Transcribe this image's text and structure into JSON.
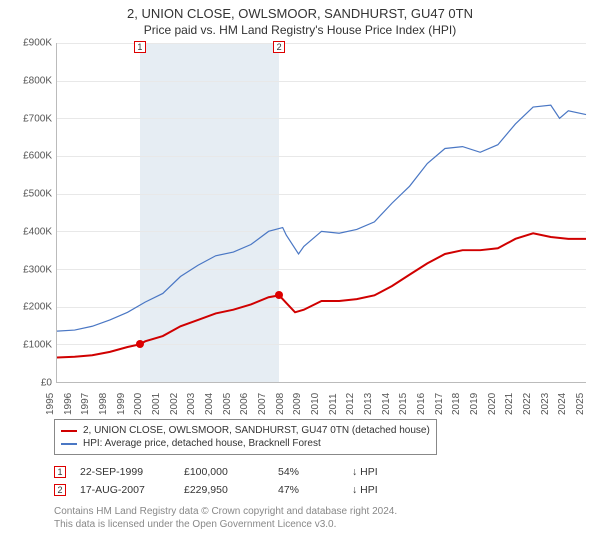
{
  "titles": {
    "main": "2, UNION CLOSE, OWLSMOOR, SANDHURST, GU47 0TN",
    "sub": "Price paid vs. HM Land Registry's House Price Index (HPI)"
  },
  "chart": {
    "type": "line",
    "background_color": "#ffffff",
    "grid_color": "#e8e8e8",
    "shade_color": "#e6edf3",
    "shade_range": [
      1999.7,
      2007.6
    ],
    "x": {
      "min": 1995,
      "max": 2025,
      "ticks": [
        1995,
        1996,
        1997,
        1998,
        1999,
        2000,
        2001,
        2002,
        2003,
        2004,
        2005,
        2006,
        2007,
        2008,
        2009,
        2010,
        2011,
        2012,
        2013,
        2014,
        2015,
        2016,
        2017,
        2018,
        2019,
        2020,
        2021,
        2022,
        2023,
        2024,
        2025
      ]
    },
    "y": {
      "min": 0,
      "max": 900000,
      "ticks": [
        0,
        100000,
        200000,
        300000,
        400000,
        500000,
        600000,
        700000,
        800000,
        900000
      ],
      "labels": [
        "£0",
        "£100K",
        "£200K",
        "£300K",
        "£400K",
        "£500K",
        "£600K",
        "£700K",
        "£800K",
        "£900K"
      ]
    },
    "series": [
      {
        "name": "prop",
        "color": "#d00000",
        "width": 2,
        "points": [
          [
            1995,
            65000
          ],
          [
            1996,
            67000
          ],
          [
            1997,
            71000
          ],
          [
            1998,
            80000
          ],
          [
            1999,
            93000
          ],
          [
            1999.7,
            100000
          ],
          [
            2000,
            108000
          ],
          [
            2001,
            122000
          ],
          [
            2002,
            148000
          ],
          [
            2003,
            165000
          ],
          [
            2004,
            182000
          ],
          [
            2005,
            192000
          ],
          [
            2006,
            206000
          ],
          [
            2007,
            225000
          ],
          [
            2007.6,
            229950
          ],
          [
            2008,
            210000
          ],
          [
            2008.5,
            185000
          ],
          [
            2009,
            192000
          ],
          [
            2010,
            215000
          ],
          [
            2011,
            215000
          ],
          [
            2012,
            220000
          ],
          [
            2013,
            230000
          ],
          [
            2014,
            255000
          ],
          [
            2015,
            285000
          ],
          [
            2016,
            315000
          ],
          [
            2017,
            340000
          ],
          [
            2018,
            350000
          ],
          [
            2019,
            350000
          ],
          [
            2020,
            355000
          ],
          [
            2021,
            380000
          ],
          [
            2022,
            395000
          ],
          [
            2023,
            385000
          ],
          [
            2024,
            380000
          ],
          [
            2025,
            380000
          ]
        ]
      },
      {
        "name": "hpi",
        "color": "#4a77c4",
        "width": 1.2,
        "points": [
          [
            1995,
            135000
          ],
          [
            1996,
            138000
          ],
          [
            1997,
            148000
          ],
          [
            1998,
            165000
          ],
          [
            1999,
            185000
          ],
          [
            2000,
            212000
          ],
          [
            2001,
            235000
          ],
          [
            2002,
            280000
          ],
          [
            2003,
            310000
          ],
          [
            2004,
            335000
          ],
          [
            2005,
            345000
          ],
          [
            2006,
            365000
          ],
          [
            2007,
            400000
          ],
          [
            2007.8,
            410000
          ],
          [
            2008,
            390000
          ],
          [
            2008.7,
            340000
          ],
          [
            2009,
            360000
          ],
          [
            2010,
            400000
          ],
          [
            2011,
            395000
          ],
          [
            2012,
            405000
          ],
          [
            2013,
            425000
          ],
          [
            2014,
            475000
          ],
          [
            2015,
            520000
          ],
          [
            2016,
            580000
          ],
          [
            2017,
            620000
          ],
          [
            2018,
            625000
          ],
          [
            2019,
            610000
          ],
          [
            2020,
            630000
          ],
          [
            2021,
            685000
          ],
          [
            2022,
            730000
          ],
          [
            2023,
            735000
          ],
          [
            2023.5,
            700000
          ],
          [
            2024,
            720000
          ],
          [
            2025,
            710000
          ]
        ]
      }
    ],
    "sale_markers": [
      {
        "num": "1",
        "x": 1999.7,
        "y": 100000
      },
      {
        "num": "2",
        "x": 2007.6,
        "y": 229950
      }
    ]
  },
  "legend": {
    "items": [
      {
        "color": "#d00000",
        "label": "2, UNION CLOSE, OWLSMOOR, SANDHURST, GU47 0TN (detached house)"
      },
      {
        "color": "#4a77c4",
        "label": "HPI: Average price, detached house, Bracknell Forest"
      }
    ]
  },
  "sales": [
    {
      "num": "1",
      "date": "22-SEP-1999",
      "price": "£100,000",
      "pct": "54%",
      "trend": "↓ HPI"
    },
    {
      "num": "2",
      "date": "17-AUG-2007",
      "price": "£229,950",
      "pct": "47%",
      "trend": "↓ HPI"
    }
  ],
  "footer": {
    "line1": "Contains HM Land Registry data © Crown copyright and database right 2024.",
    "line2": "This data is licensed under the Open Government Licence v3.0."
  }
}
